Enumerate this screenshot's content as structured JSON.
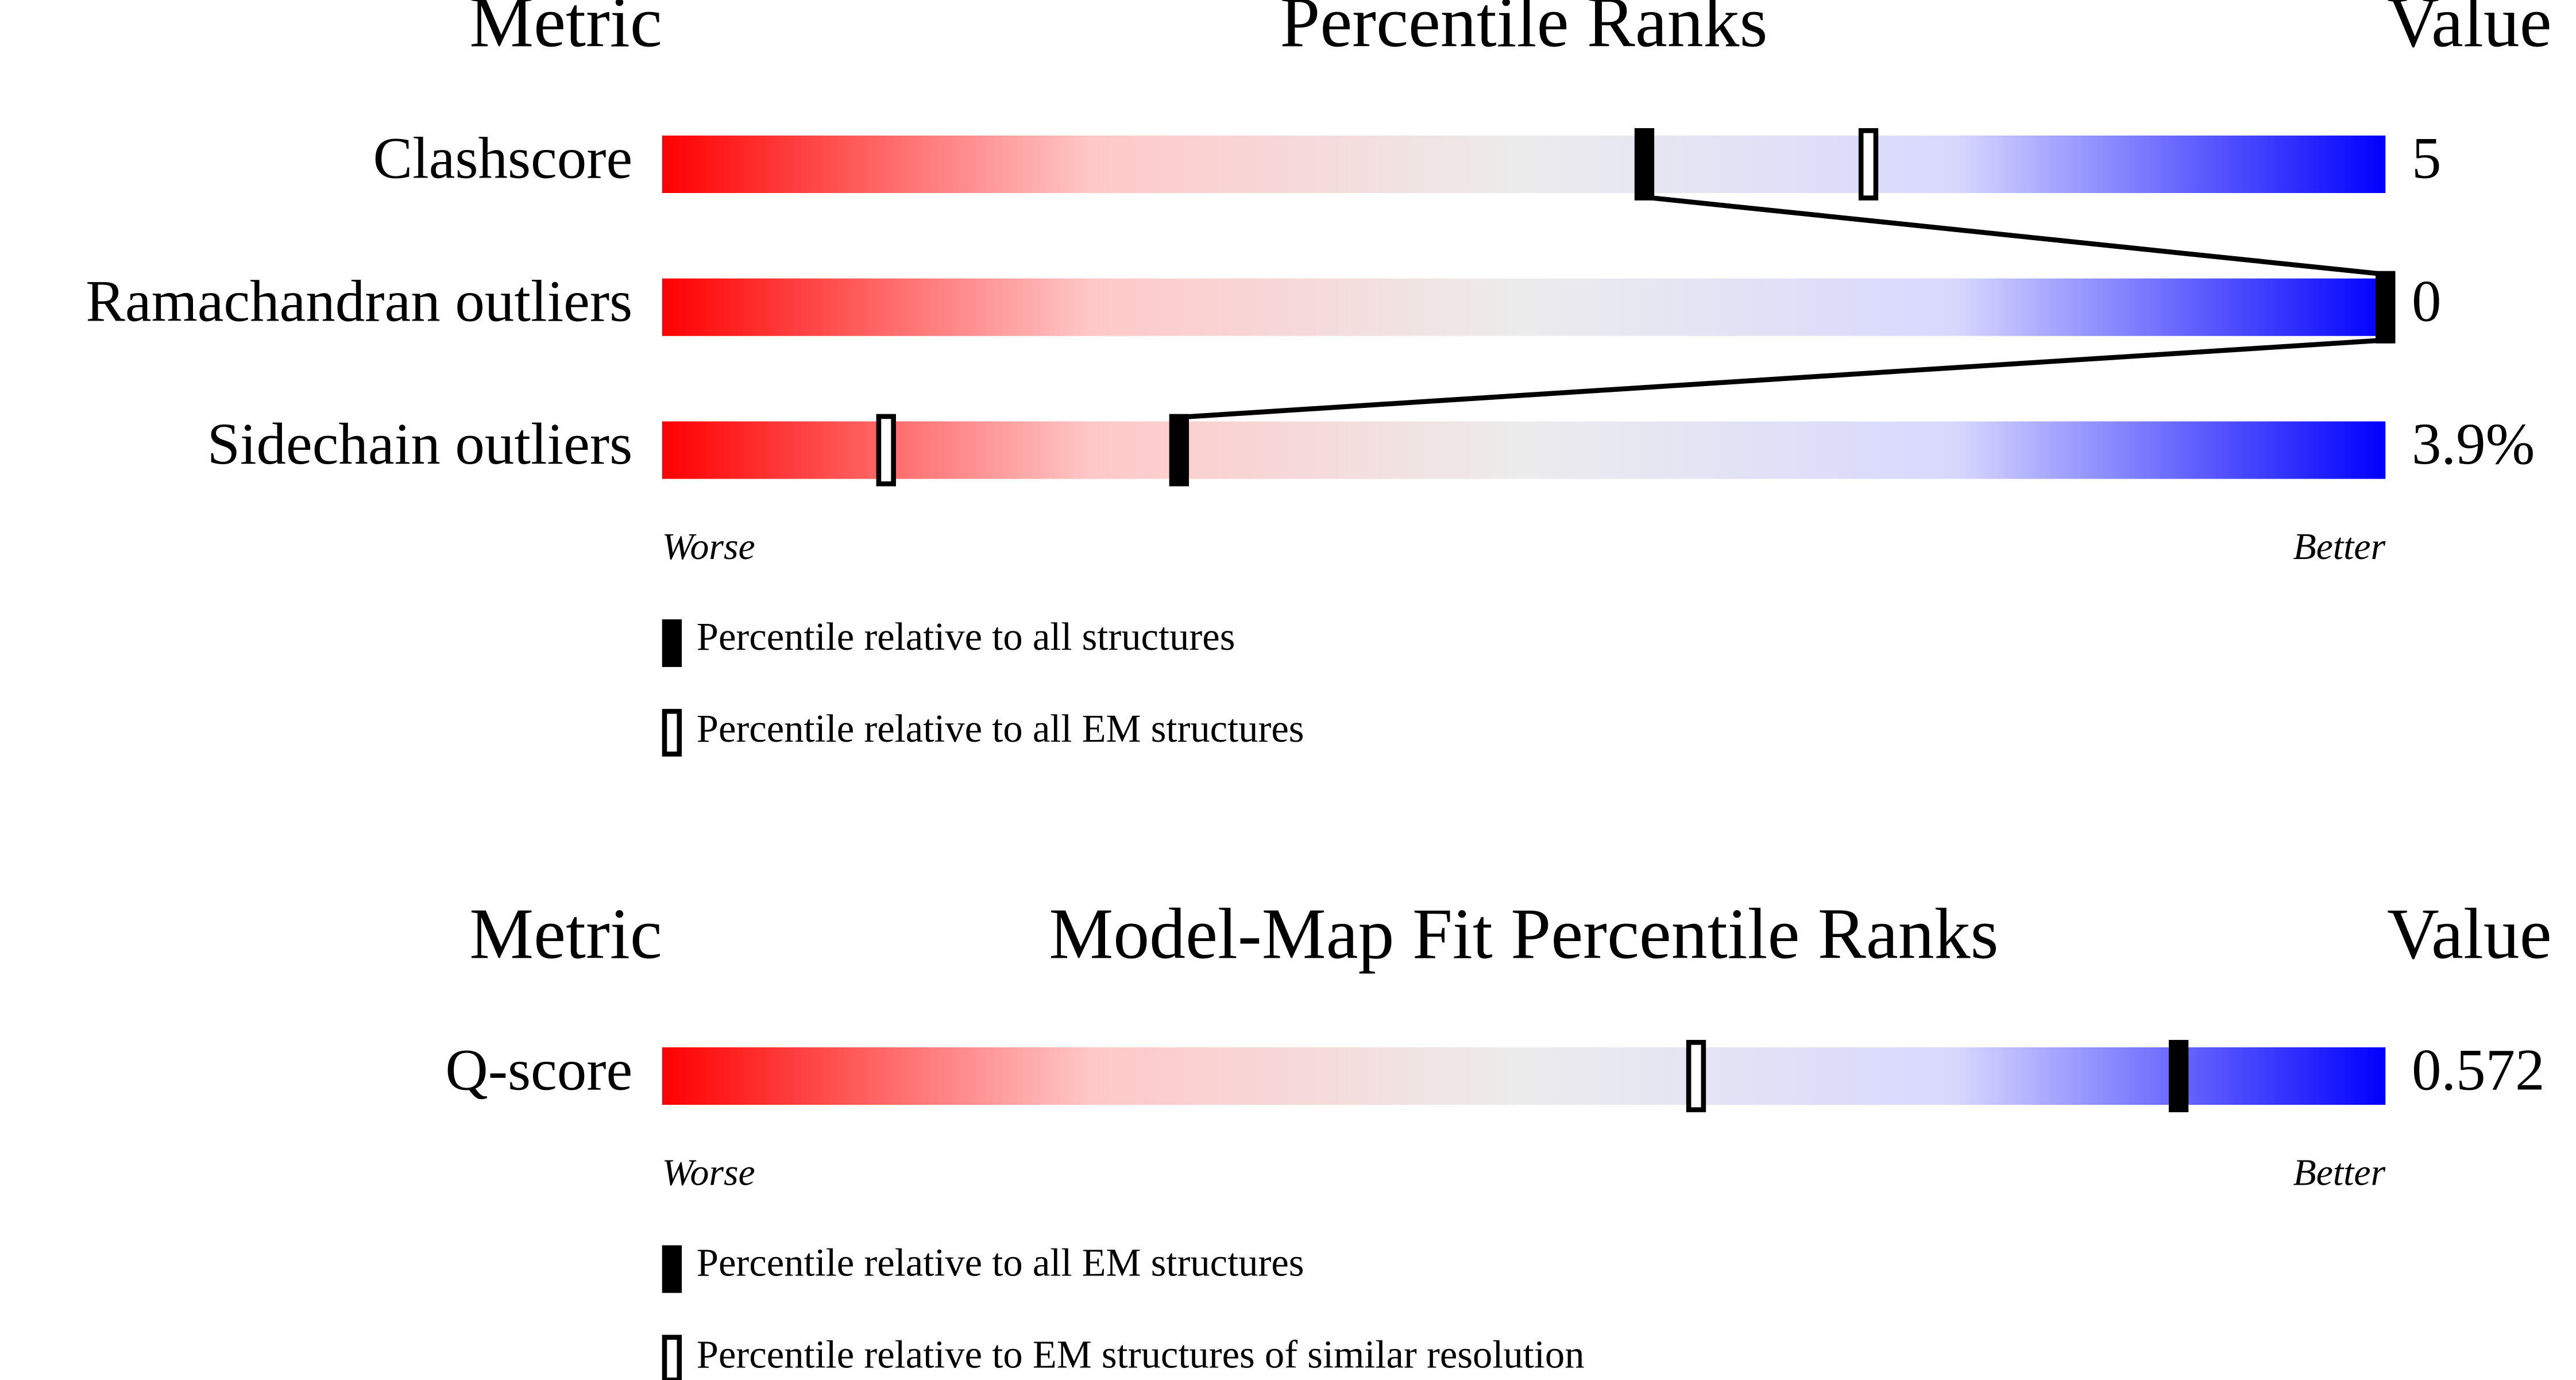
{
  "chart_data": [
    {
      "type": "slider",
      "header": {
        "metric": "Metric",
        "title": "Percentile Ranks",
        "value": "Value"
      },
      "categories": [
        "Clashscore",
        "Ramachandran outliers",
        "Sidechain outliers"
      ],
      "series": [
        {
          "name": "Percentile relative to all structures",
          "style": "filled",
          "connected": true,
          "values": [
            57,
            100,
            30
          ]
        },
        {
          "name": "Percentile relative to all EM structures",
          "style": "open",
          "connected": false,
          "values": [
            70,
            100,
            13
          ]
        }
      ],
      "values": [
        5,
        0,
        3.9
      ],
      "value_labels": [
        "5",
        "0",
        "3.9%"
      ],
      "xlim": [
        0,
        100
      ],
      "axis_labels": {
        "low": "Worse",
        "high": "Better"
      },
      "colors": [
        "#ff0000",
        "#ffc8c8",
        "#ececec",
        "#d8d8ff",
        "#0000ff"
      ]
    },
    {
      "type": "slider",
      "header": {
        "metric": "Metric",
        "title": "Model-Map Fit Percentile Ranks",
        "value": "Value"
      },
      "categories": [
        "Q-score"
      ],
      "series": [
        {
          "name": "Percentile relative to all EM structures",
          "style": "filled",
          "connected": true,
          "values": [
            88
          ]
        },
        {
          "name": "Percentile relative to EM structures of similar resolution",
          "style": "open",
          "connected": false,
          "values": [
            60
          ]
        }
      ],
      "values": [
        0.572
      ],
      "value_labels": [
        "0.572"
      ],
      "xlim": [
        0,
        100
      ],
      "axis_labels": {
        "low": "Worse",
        "high": "Better"
      },
      "colors": [
        "#ff0000",
        "#ffc8c8",
        "#ececec",
        "#d8d8ff",
        "#0000ff"
      ]
    }
  ]
}
